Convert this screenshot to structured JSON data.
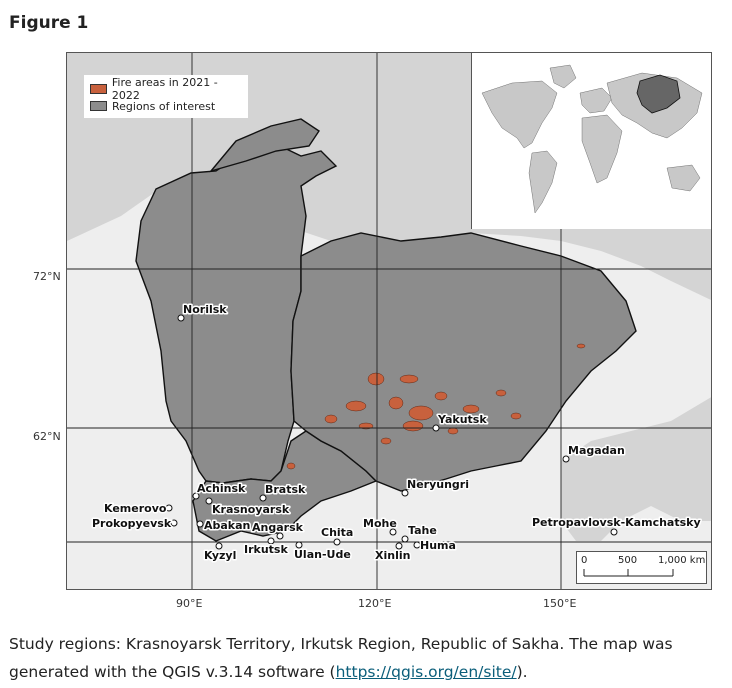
{
  "figure_heading": "Figure 1",
  "legend": {
    "fire": {
      "label": "Fire areas in 2021 - 2022",
      "color": "#c8613d"
    },
    "regions": {
      "label": "Regions of interest",
      "color": "#8c8c8c"
    }
  },
  "latitude_labels": [
    "72°N",
    "62°N"
  ],
  "longitude_labels": [
    "90°E",
    "120°E",
    "150°E"
  ],
  "cities": [
    {
      "name": "Norilsk"
    },
    {
      "name": "Yakutsk"
    },
    {
      "name": "Magadan"
    },
    {
      "name": "Neryungri"
    },
    {
      "name": "Achinsk"
    },
    {
      "name": "Bratsk"
    },
    {
      "name": "Krasnoyarsk"
    },
    {
      "name": "Kemerovo"
    },
    {
      "name": "Prokopyevsk"
    },
    {
      "name": "Abakan"
    },
    {
      "name": "Angarsk"
    },
    {
      "name": "Chita"
    },
    {
      "name": "Mohe"
    },
    {
      "name": "Tahe"
    },
    {
      "name": "Huma"
    },
    {
      "name": "Kyzyl"
    },
    {
      "name": "Irkutsk"
    },
    {
      "name": "Ulan-Ude"
    },
    {
      "name": "Xinlin"
    },
    {
      "name": "Petropavlovsk-Kamchatsky"
    }
  ],
  "scale_bar": {
    "labels": [
      "0",
      "500",
      "1,000 km"
    ]
  },
  "caption": {
    "text": "Study regions: Krasnoyarsk Territory, Irkutsk Region, Republic of Sakha. The map was generated with the QGIS v.3.14 software (",
    "link": "https://qgis.org/en/site/",
    "end": ")."
  }
}
